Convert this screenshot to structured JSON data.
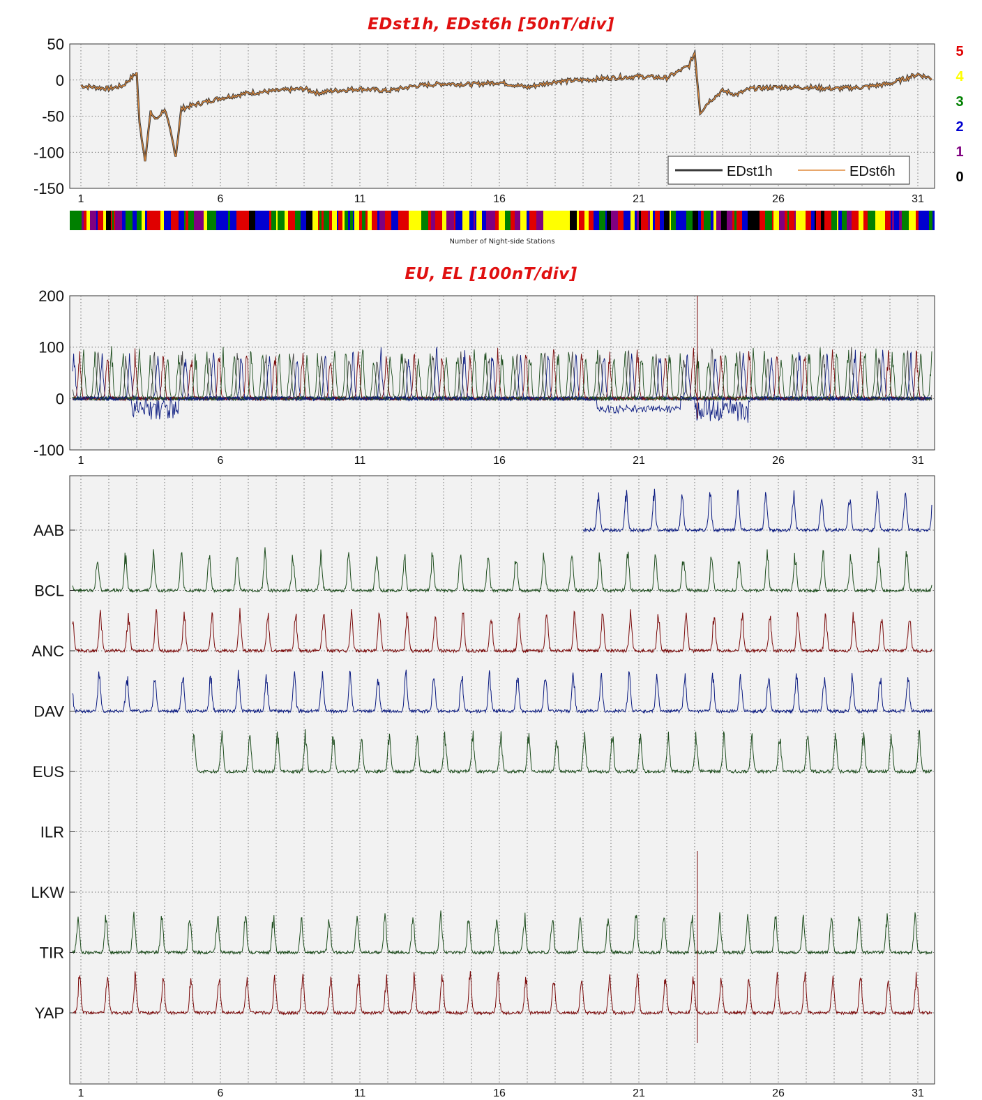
{
  "panel1": {
    "title": "EDst1h, EDst6h [50nT/div]",
    "y_ticks": [
      "50",
      "0",
      "-50",
      "-100",
      "-150"
    ],
    "x_ticks": [
      "1",
      "6",
      "11",
      "16",
      "21",
      "26",
      "31"
    ],
    "legend": [
      "EDst1h",
      "EDst6h"
    ],
    "station_count_scale": [
      {
        "label": "5",
        "color": "#e00000"
      },
      {
        "label": "4",
        "color": "#ffff00"
      },
      {
        "label": "3",
        "color": "#008000"
      },
      {
        "label": "2",
        "color": "#0000d0"
      },
      {
        "label": "1",
        "color": "#800080"
      },
      {
        "label": "0",
        "color": "#000000"
      }
    ],
    "colorbar_caption": "Number of Night-side Stations"
  },
  "panel2": {
    "title": "EU, EL   [100nT/div]",
    "y_ticks": [
      "200",
      "100",
      "0",
      "-100"
    ],
    "x_ticks": [
      "1",
      "6",
      "11",
      "16",
      "21",
      "26",
      "31"
    ]
  },
  "panel3": {
    "stations": [
      "AAB",
      "BCL",
      "ANC",
      "DAV",
      "EUS",
      "ILR",
      "LKW",
      "TIR",
      "YAP"
    ],
    "x_ticks": [
      "1",
      "6",
      "11",
      "16",
      "21",
      "26",
      "31"
    ]
  },
  "colors": {
    "edst1h": "#3a3a3a",
    "edst6h": "#e08a3c",
    "title": "#e01010",
    "panel_bg": "#f2f2f2",
    "green": "#1e4d1e",
    "red": "#7a0a0a",
    "blue": "#0a1a80"
  },
  "chart_data": [
    {
      "type": "line",
      "title": "EDst1h, EDst6h [50nT/div]",
      "xlim": [
        0.6,
        31.6
      ],
      "ylim": [
        -150,
        50
      ],
      "series": [
        {
          "name": "EDst1h",
          "x": [
            1,
            2,
            2.5,
            3.0,
            3.1,
            3.3,
            3.5,
            3.7,
            4.0,
            4.2,
            4.4,
            4.6,
            5,
            6,
            7,
            8,
            9,
            9.5,
            10,
            11,
            12,
            13,
            14,
            15,
            16,
            17,
            18,
            19,
            20,
            21,
            22,
            22.8,
            23.0,
            23.2,
            23.5,
            24,
            24.5,
            25,
            26,
            27,
            28,
            29,
            30,
            31,
            31.5
          ],
          "y": [
            -8,
            -12,
            -8,
            10,
            -60,
            -110,
            -45,
            -55,
            -40,
            -70,
            -105,
            -40,
            -35,
            -25,
            -18,
            -15,
            -12,
            -18,
            -15,
            -12,
            -15,
            -8,
            -5,
            -6,
            -3,
            -10,
            -2,
            0,
            3,
            5,
            3,
            20,
            38,
            -45,
            -30,
            -15,
            -20,
            -12,
            -10,
            -10,
            -12,
            -10,
            -5,
            8,
            2
          ]
        },
        {
          "name": "EDst6h",
          "x": [
            1,
            2,
            3,
            3.3,
            4,
            4.4,
            5,
            6,
            8,
            10,
            12,
            14,
            16,
            18,
            20,
            22,
            23,
            23.2,
            24,
            26,
            28,
            30,
            31.5
          ],
          "y": [
            -10,
            -12,
            5,
            -95,
            -45,
            -90,
            -38,
            -25,
            -15,
            -14,
            -13,
            -6,
            -4,
            -3,
            3,
            8,
            30,
            -40,
            -18,
            -11,
            -10,
            -6,
            4
          ]
        }
      ]
    },
    {
      "type": "line",
      "title": "EU, EL   [100nT/div]",
      "xlim": [
        0.6,
        31.6
      ],
      "ylim": [
        -100,
        200
      ],
      "series": [
        {
          "name": "",
          "note_peak_days": [
            1,
            2,
            3,
            4,
            5,
            6,
            7,
            8,
            9,
            10,
            11,
            12,
            13,
            14,
            15,
            16,
            17,
            18,
            19,
            20,
            21,
            22,
            23,
            24,
            25,
            26,
            27,
            28,
            29,
            30,
            31
          ],
          "peak_amplitude": 90,
          "baseline": 0
        },
        {
          "name": "",
          "lower_min": -55
        }
      ]
    }
  ]
}
